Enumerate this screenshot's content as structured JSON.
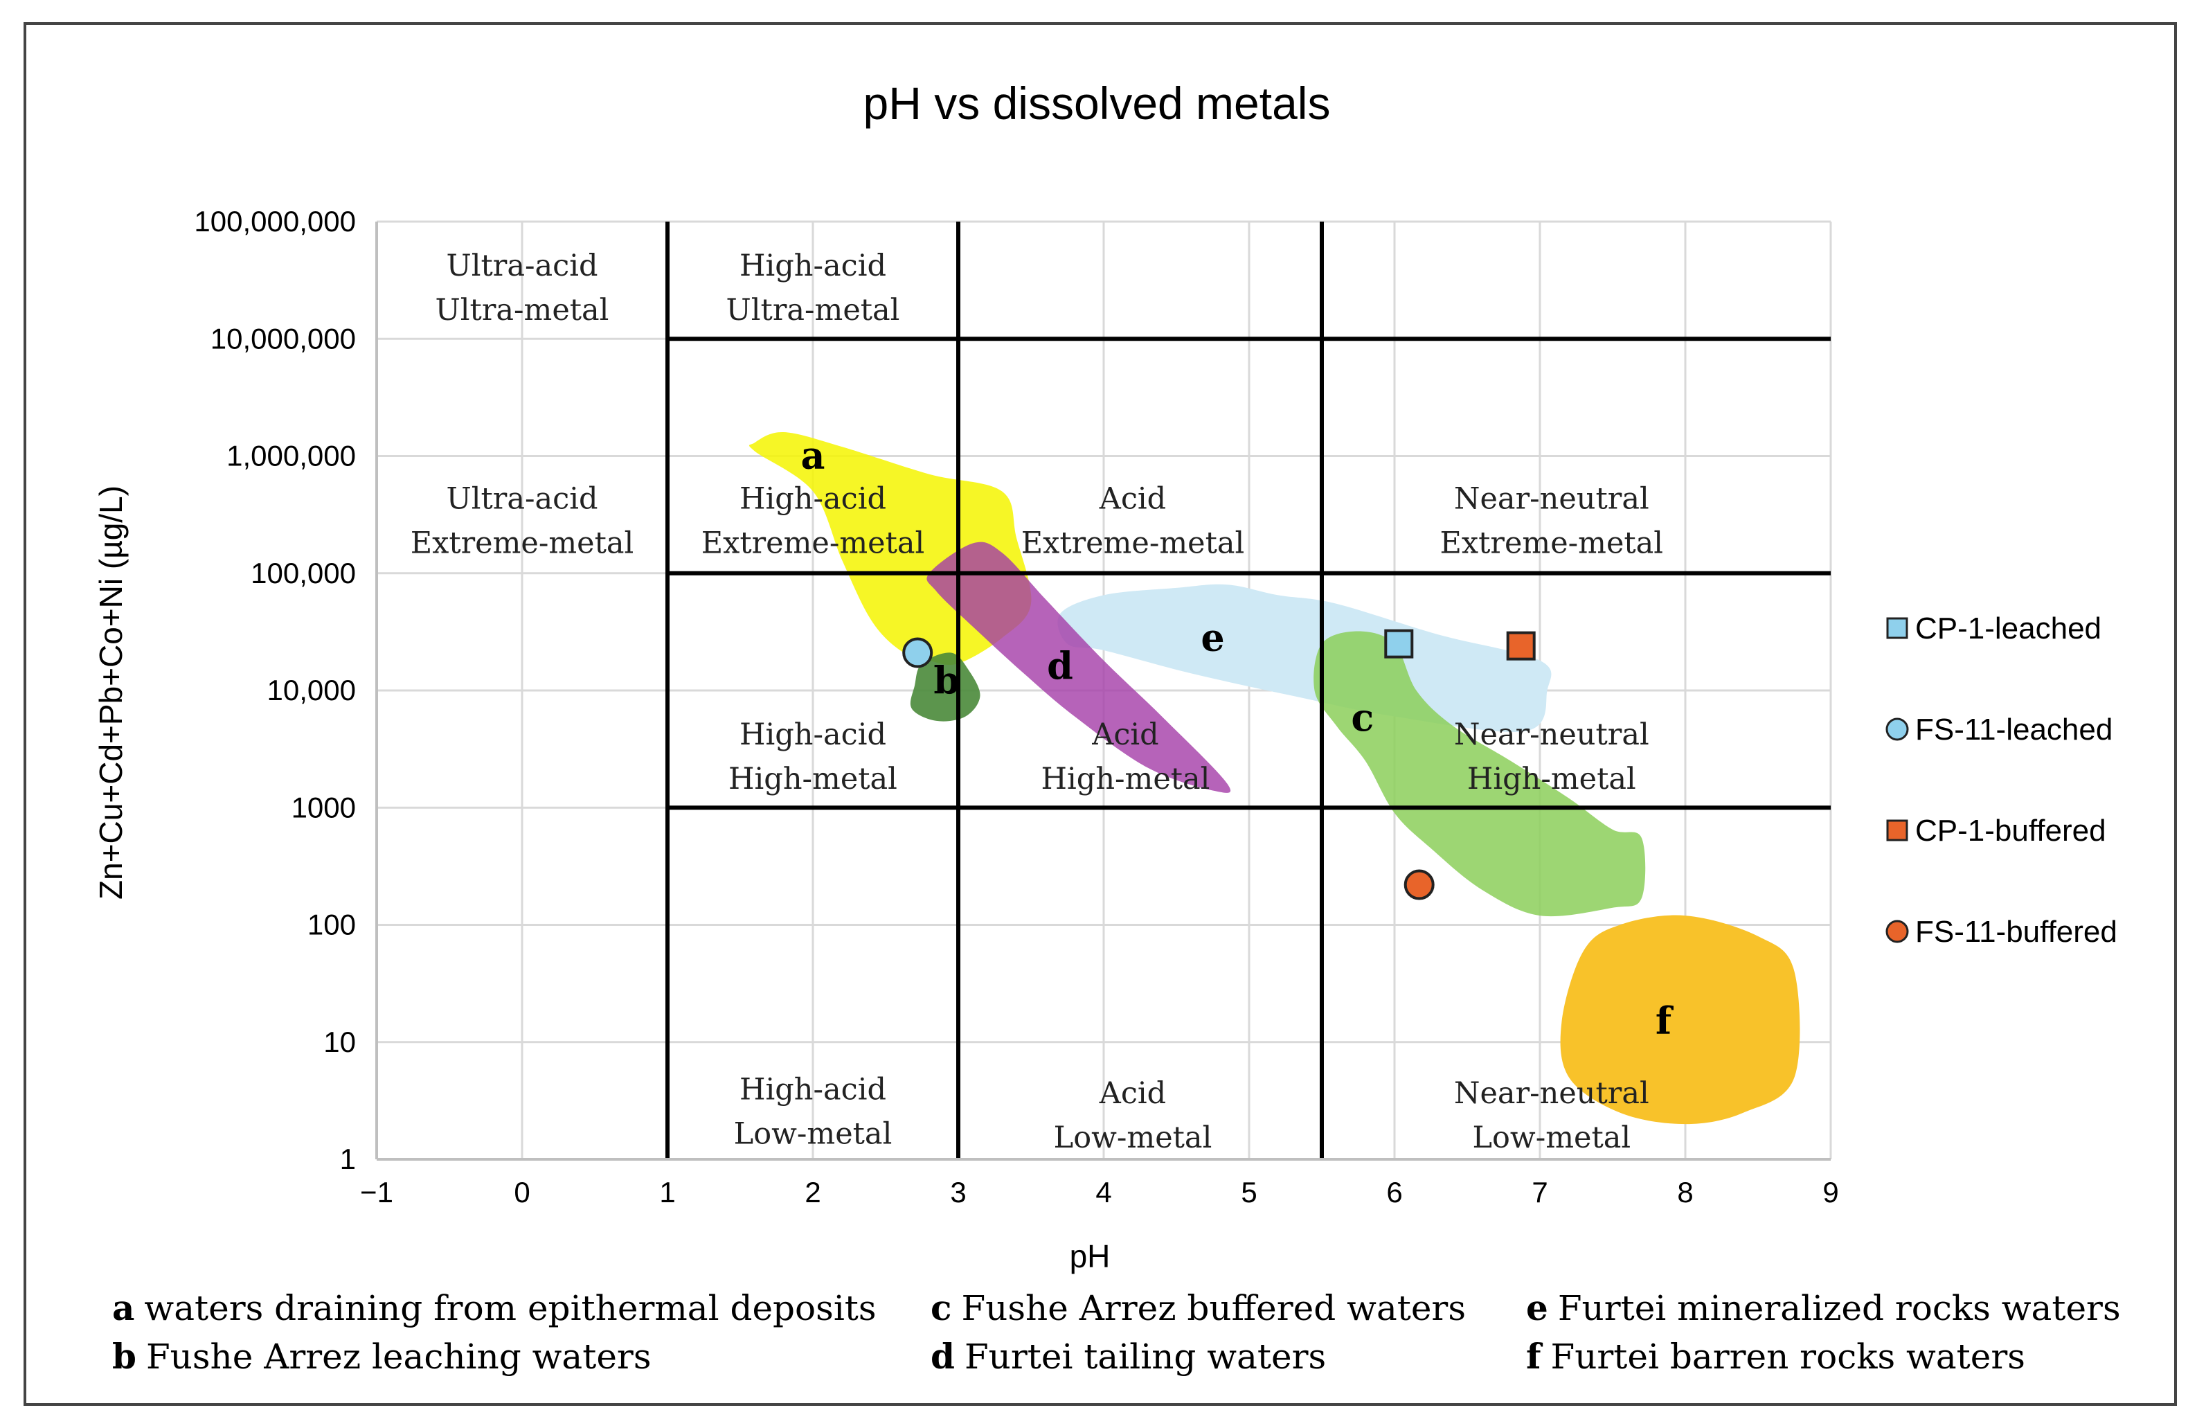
{
  "chart_data": {
    "type": "scatter",
    "title": "pH vs dissolved metals",
    "xlabel": "pH",
    "ylabel": "Zn+Cu+Cd+Pb+Co+Ni   (µg/L)",
    "x_range": [
      -1,
      9
    ],
    "y_range": [
      1,
      100000000
    ],
    "y_scale": "log",
    "x_ticks": [
      -1,
      0,
      1,
      2,
      3,
      4,
      5,
      6,
      7,
      8,
      9
    ],
    "x_tick_labels": [
      "−1",
      "0",
      "1",
      "2",
      "3",
      "4",
      "5",
      "6",
      "7",
      "8",
      "9"
    ],
    "y_ticks": [
      1,
      10,
      100,
      1000,
      10000,
      100000,
      1000000,
      10000000,
      100000000
    ],
    "y_tick_labels": [
      "1",
      "10",
      "100",
      "1000",
      "10,000",
      "100,000",
      "1,000,000",
      "10,000,000",
      "100,000,000"
    ],
    "grid": true,
    "classification_lines": {
      "ph_boundaries": [
        1,
        3,
        5.5
      ],
      "metal_boundaries": [
        1000,
        100000,
        10000000
      ]
    },
    "region_labels": [
      {
        "line1": "Ultra-acid",
        "line2": "Ultra-metal",
        "x": 0,
        "y": 31000000
      },
      {
        "line1": "High-acid",
        "line2": "Ultra-metal",
        "x": 2,
        "y": 31000000
      },
      {
        "line1": "Ultra-acid",
        "line2": "Extreme-metal",
        "x": 0,
        "y": 320000
      },
      {
        "line1": "High-acid",
        "line2": "Extreme-metal",
        "x": 2,
        "y": 320000
      },
      {
        "line1": "Acid",
        "line2": "Extreme-metal",
        "x": 4.2,
        "y": 320000
      },
      {
        "line1": "Near-neutral",
        "line2": "Extreme-metal",
        "x": 7.08,
        "y": 320000
      },
      {
        "line1": "High-acid",
        "line2": "High-metal",
        "x": 2,
        "y": 3100
      },
      {
        "line1": "Acid",
        "line2": "High-metal",
        "x": 4.15,
        "y": 3100
      },
      {
        "line1": "Near-neutral",
        "line2": "High-metal",
        "x": 7.08,
        "y": 3100
      },
      {
        "line1": "High-acid",
        "line2": "Low-metal",
        "x": 2,
        "y": 2.9
      },
      {
        "line1": "Acid",
        "line2": "Low-metal",
        "x": 4.2,
        "y": 2.7
      },
      {
        "line1": "Near-neutral",
        "line2": "Low-metal",
        "x": 7.08,
        "y": 2.7
      }
    ],
    "fields": [
      {
        "id": "a",
        "color": "#f5f500",
        "label_pos": [
          2,
          1000000
        ],
        "outline": [
          [
            1.6,
            1300000
          ],
          [
            1.8,
            1600000
          ],
          [
            2.2,
            1200000
          ],
          [
            2.8,
            700000
          ],
          [
            3.3,
            500000
          ],
          [
            3.4,
            200000
          ],
          [
            3.5,
            55000
          ],
          [
            3.3,
            28000
          ],
          [
            3.0,
            17000
          ],
          [
            2.8,
            18000
          ],
          [
            2.6,
            22000
          ],
          [
            2.4,
            40000
          ],
          [
            2.2,
            130000
          ],
          [
            2.0,
            500000
          ],
          [
            1.6,
            1100000
          ]
        ]
      },
      {
        "id": "b",
        "color": "#4a8a3a",
        "label_pos": [
          2.92,
          12000
        ],
        "outline": [
          [
            2.75,
            17000
          ],
          [
            2.95,
            21000
          ],
          [
            3.07,
            15000
          ],
          [
            3.15,
            9000
          ],
          [
            3.05,
            6000
          ],
          [
            2.85,
            5500
          ],
          [
            2.68,
            7000
          ],
          [
            2.7,
            11000
          ]
        ]
      },
      {
        "id": "c",
        "color": "#8ccf5a",
        "label_pos": [
          5.78,
          5800
        ],
        "outline": [
          [
            5.5,
            25000
          ],
          [
            5.75,
            32000
          ],
          [
            6.0,
            25000
          ],
          [
            6.15,
            10000
          ],
          [
            6.4,
            5000
          ],
          [
            6.8,
            2500
          ],
          [
            7.2,
            1200
          ],
          [
            7.5,
            650
          ],
          [
            7.7,
            550
          ],
          [
            7.7,
            170
          ],
          [
            7.5,
            140
          ],
          [
            7.0,
            120
          ],
          [
            6.6,
            200
          ],
          [
            6.25,
            450
          ],
          [
            6.0,
            900
          ],
          [
            5.8,
            2500
          ],
          [
            5.6,
            5000
          ],
          [
            5.45,
            10000
          ]
        ]
      },
      {
        "id": "d",
        "color": "#a43ca8",
        "label_pos": [
          3.7,
          16000
        ],
        "outline": [
          [
            2.8,
            100000
          ],
          [
            3.1,
            180000
          ],
          [
            3.3,
            150000
          ],
          [
            3.6,
            60000
          ],
          [
            4.0,
            18000
          ],
          [
            4.4,
            6000
          ],
          [
            4.85,
            1600
          ],
          [
            4.75,
            1400
          ],
          [
            4.3,
            2200
          ],
          [
            3.8,
            6000
          ],
          [
            3.45,
            14000
          ],
          [
            3.1,
            35000
          ],
          [
            2.85,
            70000
          ]
        ]
      },
      {
        "id": "e",
        "color": "#cfe9f5",
        "label_pos": [
          4.75,
          28000
        ],
        "outline": [
          [
            3.7,
            45000
          ],
          [
            4.0,
            65000
          ],
          [
            4.5,
            75000
          ],
          [
            4.85,
            80000
          ],
          [
            5.2,
            65000
          ],
          [
            5.6,
            55000
          ],
          [
            6.3,
            30000
          ],
          [
            7.0,
            18000
          ],
          [
            7.05,
            10000
          ],
          [
            6.9,
            4500
          ],
          [
            6.0,
            6000
          ],
          [
            5.3,
            9000
          ],
          [
            4.6,
            14000
          ],
          [
            4.0,
            22000
          ],
          [
            3.75,
            25000
          ]
        ]
      },
      {
        "id": "f",
        "color": "#f8c22a",
        "label_pos": [
          7.85,
          15
        ],
        "outline": [
          [
            7.3,
            60
          ],
          [
            7.55,
            100
          ],
          [
            8.0,
            120
          ],
          [
            8.5,
            80
          ],
          [
            8.75,
            40
          ],
          [
            8.75,
            5
          ],
          [
            8.4,
            2.5
          ],
          [
            8.0,
            2.0
          ],
          [
            7.55,
            2.5
          ],
          [
            7.2,
            5
          ],
          [
            7.15,
            15
          ]
        ]
      }
    ],
    "series": [
      {
        "name": "CP-1-leached",
        "marker": "square",
        "color": "#8fd0ec",
        "x": 6.03,
        "y": 25000
      },
      {
        "name": "FS-11-leached",
        "marker": "circle",
        "color": "#8fd0ec",
        "x": 2.72,
        "y": 21000
      },
      {
        "name": "CP-1-buffered",
        "marker": "square",
        "color": "#e8642a",
        "x": 6.87,
        "y": 24000
      },
      {
        "name": "FS-11-buffered",
        "marker": "circle",
        "color": "#e8642a",
        "x": 6.17,
        "y": 220
      }
    ],
    "field_captions": [
      [
        {
          "key": "a",
          "text": "waters  draining from epithermal deposits"
        },
        {
          "key": "b",
          "text": "Fushe Arrez leaching waters"
        }
      ],
      [
        {
          "key": "c",
          "text": "Fushe Arrez buffered waters"
        },
        {
          "key": "d",
          "text": "Furtei tailing waters"
        }
      ],
      [
        {
          "key": "e",
          "text": "Furtei mineralized rocks waters"
        },
        {
          "key": "f",
          "text": "Furtei barren rocks waters"
        }
      ]
    ]
  }
}
